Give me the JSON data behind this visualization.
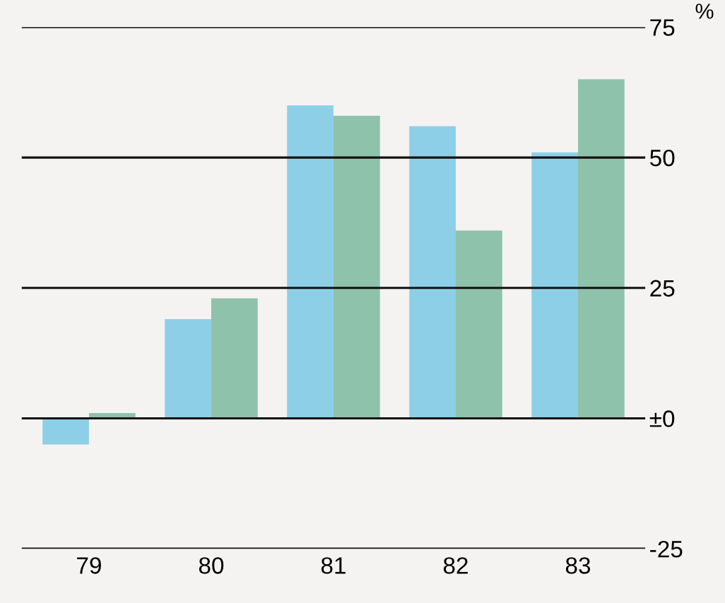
{
  "chart_data": {
    "type": "bar",
    "ylabel": "%",
    "categories": [
      "79",
      "80",
      "81",
      "82",
      "83"
    ],
    "series": [
      {
        "color": "#8ecfe8",
        "values": [
          -5,
          19,
          60,
          56,
          51
        ]
      },
      {
        "color": "#8fc2aa",
        "values": [
          1,
          23,
          58,
          36,
          65
        ]
      }
    ],
    "ylim": [
      -25,
      75
    ],
    "yticks": [
      -25,
      {
        "value": 0,
        "label": "±0"
      },
      25,
      50,
      75
    ],
    "grid": "y",
    "legend": false
  }
}
